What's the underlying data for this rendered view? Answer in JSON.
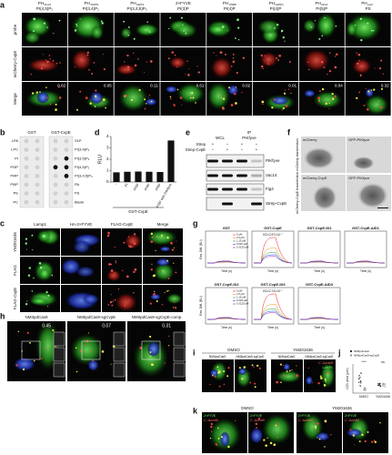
{
  "panel_a": {
    "label": "a",
    "probes": [
      {
        "probe": "PH",
        "domain": "PLCδ",
        "lipid": "PI(4,5)P₂"
      },
      {
        "probe": "PH",
        "domain": "TAPP1",
        "lipid": "PI(3,4)P₂"
      },
      {
        "probe": "PH",
        "domain": "GRP1",
        "lipid": "PI(3,4,5)P₃"
      },
      {
        "probe": "2×FYVE",
        "lipid": "PI(3)P"
      },
      {
        "probe": "PH",
        "domain": "OSBP",
        "lipid": "PI(4)P"
      },
      {
        "probe": "PH",
        "domain": "FAPP1",
        "lipid": "PI(4)P"
      },
      {
        "probe": "PH",
        "domain": "ING2",
        "lipid": "PI(5)P"
      },
      {
        "probe": "PH",
        "domain": "evt2",
        "lipid": "PS"
      }
    ],
    "rows": [
      "probe",
      "mCherry-CvpE",
      "Merge"
    ],
    "coloc": [
      "0.02",
      "0.05",
      "0.11",
      "0.61",
      "0.02",
      "0.01",
      "0.04",
      "0.32"
    ]
  },
  "panel_b": {
    "label": "b",
    "membranes": [
      "GST",
      "GST-CvpE"
    ],
    "left": [
      "LPA",
      "LPC",
      "PI",
      "PI3P",
      "PI4P",
      "PI5P",
      "PE",
      "PC"
    ],
    "right": [
      "S1P",
      "PI(3,4)P₂",
      "PI(3,5)P₂",
      "PI(4,5)P₂",
      "PI(3,4,5)P₃",
      "PA",
      "PS",
      "Blank"
    ]
  },
  "panel_d": {
    "label": "d",
    "y_label": "RLU",
    "x_label": "GST-CvpE",
    "categories": [
      "-",
      "PI",
      "PI3P",
      "PI4P",
      "PI5P",
      "PI3P with PIKfyve"
    ],
    "values": [
      0.85,
      0.9,
      0.92,
      0.9,
      0.88,
      3.65
    ],
    "ylim": [
      0,
      4
    ],
    "yticks": [
      0,
      1,
      2,
      3,
      4
    ]
  },
  "panel_e": {
    "label": "e",
    "ip": "IP",
    "ip_target": "PIKfyve",
    "wcl": "WCL",
    "rows": [
      {
        "name": "Strep",
        "signs": [
          "+",
          "−",
          "+",
          "−"
        ]
      },
      {
        "name": "Strep-CvpE",
        "signs": [
          "−",
          "+",
          "−",
          "+"
        ]
      }
    ],
    "blots": [
      "PIKfyve",
      "Vac14",
      "Fig4",
      "Strep-CvpE"
    ]
  },
  "panel_f": {
    "label": "f",
    "rows": [
      "mCherry transfection",
      "mCherry-CvpE transfection"
    ],
    "channels": [
      [
        "mCherry",
        "GFP-PIKfyve"
      ],
      [
        "mCherry-CvpE",
        "GFP-PIKfyve"
      ]
    ]
  },
  "panel_c": {
    "label": "c",
    "columns": [
      "Lamp1",
      "HA-2×FYVE",
      "FLAG-CvpE",
      "Merge"
    ],
    "rows": [
      "YM201636",
      "FLAG",
      "FLAG-CvpE"
    ]
  },
  "panel_g": {
    "label": "g",
    "y_label": "Res. Diff. (RU)",
    "x_label": "Time (s)",
    "concentrations": [
      "5 μM",
      "2.5 μM",
      "1.25 μM",
      "0.625 μM",
      "0.3125 μM"
    ],
    "plots": [
      {
        "title": "GST"
      },
      {
        "title": "GST-CvpE",
        "kd": "KD=2.57×10⁻⁷"
      },
      {
        "title": "GST-CvpE-ID1"
      },
      {
        "title": "GST-CvpE-ΔID1"
      },
      {
        "title": "GST-CvpE-ID2"
      },
      {
        "title": "GST-CvpE-ID3",
        "kd": "KD=2.74×10⁻⁷"
      },
      {
        "title": "GST-CvpE-ΔID3"
      }
    ]
  },
  "panel_h": {
    "label": "h",
    "strains": [
      "NMIIpdCas9",
      "NMIIpdCas9-sgCvpE",
      "NMIIpdCas9-sgCvpE-comp"
    ],
    "coloc": [
      "0.45",
      "0.07",
      "0.31"
    ]
  },
  "panel_i": {
    "label": "i",
    "treatments": [
      "DMSO",
      "YM201636"
    ],
    "strains": [
      "NMIIpdCas9",
      "NMIIpdCas9-sgCvpE"
    ],
    "channels": [
      "C. burnetii",
      "LAMP1"
    ]
  },
  "panel_j": {
    "label": "j",
    "legend": [
      "NMIIpdCas9",
      "NMIIpdCas9-sgCvpE"
    ],
    "categories": [
      "DMSO",
      "YM201636"
    ],
    "y_label": "CCV area (μm²)",
    "stats": [
      "****",
      "ns"
    ]
  },
  "panel_k": {
    "label": "k",
    "treatments": [
      "DMSO",
      "YM201636"
    ],
    "channels": [
      "2×FYVE",
      "C. burnetii"
    ]
  }
}
